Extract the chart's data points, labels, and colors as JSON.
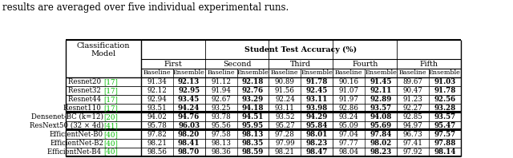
{
  "title_text": "results are averaged over five individual experimental runs.",
  "sub_headers": [
    "First",
    "Second",
    "Third",
    "Fourth",
    "Fifth"
  ],
  "col_headers": [
    "Baseline",
    "Ensemble",
    "Baseline",
    "Ensemble",
    "Baseline",
    "Ensemble",
    "Baseline",
    "Ensemble",
    "Baseline",
    "Ensemble"
  ],
  "rows": [
    {
      "label": "Resnet20 ",
      "ref": "[17]",
      "values": [
        "91.34",
        "92.13",
        "91.12",
        "92.18",
        "90.89",
        "91.78",
        "90.16",
        "91.45",
        "89.67",
        "91.03"
      ],
      "bold": [
        1,
        3,
        5,
        7,
        9
      ]
    },
    {
      "label": "Resnet32 ",
      "ref": "[17]",
      "values": [
        "92.12",
        "92.95",
        "91.94",
        "92.76",
        "91.56",
        "92.45",
        "91.07",
        "92.11",
        "90.47",
        "91.78"
      ],
      "bold": [
        1,
        3,
        5,
        7,
        9
      ]
    },
    {
      "label": "Resnet44 ",
      "ref": "[17]",
      "values": [
        "92.94",
        "93.45",
        "92.67",
        "93.29",
        "92.24",
        "93.11",
        "91.97",
        "92.89",
        "91.23",
        "92.56"
      ],
      "bold": [
        1,
        3,
        5,
        7,
        9
      ]
    },
    {
      "label": "Resnet110 ",
      "ref": "[17]",
      "values": [
        "93.51",
        "94.24",
        "93.25",
        "94.18",
        "93.11",
        "93.98",
        "92.86",
        "93.57",
        "92.27",
        "93.28"
      ],
      "bold": [
        1,
        3,
        5,
        7,
        9
      ]
    },
    {
      "label": "Densenet-BC (k=12)",
      "ref": "[20]",
      "values": [
        "94.02",
        "94.76",
        "93.78",
        "94.51",
        "93.52",
        "94.29",
        "93.24",
        "94.08",
        "92.85",
        "93.57"
      ],
      "bold": [
        1,
        3,
        5,
        7,
        9
      ]
    },
    {
      "label": "ResNext50 (32 × 4d)",
      "ref": "[41]",
      "values": [
        "95.78",
        "96.03",
        "95.56",
        "95.95",
        "95.27",
        "95.84",
        "95.09",
        "95.69",
        "94.97",
        "95.47"
      ],
      "bold": [
        1,
        3,
        5,
        7,
        9
      ]
    },
    {
      "label": "EfficientNet-B0",
      "ref": "[40]",
      "values": [
        "97.82",
        "98.20",
        "97.58",
        "98.13",
        "97.28",
        "98.01",
        "97.04",
        "97.84",
        "96.73",
        "97.57"
      ],
      "bold": [
        1,
        3,
        5,
        7,
        9
      ]
    },
    {
      "label": "EfficientNet-B2",
      "ref": "[40]",
      "values": [
        "98.21",
        "98.41",
        "98.13",
        "98.35",
        "97.99",
        "98.23",
        "97.77",
        "98.02",
        "97.41",
        "97.88"
      ],
      "bold": [
        1,
        3,
        5,
        7,
        9
      ]
    },
    {
      "label": "EfficientNet-B4 ",
      "ref": "[40]",
      "values": [
        "98.56",
        "98.70",
        "98.36",
        "98.59",
        "98.21",
        "98.47",
        "98.04",
        "98.23",
        "97.92",
        "98.14"
      ],
      "bold": [
        1,
        3,
        5,
        7,
        9
      ]
    }
  ],
  "thick_after_rows": [
    3,
    5
  ],
  "bg_color": "#ffffff",
  "text_color": "#000000",
  "green_color": "#00bb00",
  "title_fontsize": 8.5,
  "header1_fontsize": 7.0,
  "header2_fontsize": 6.8,
  "header3_fontsize": 6.8,
  "colhead_fontsize": 5.8,
  "data_fontsize": 6.2,
  "label_fontsize": 6.2
}
